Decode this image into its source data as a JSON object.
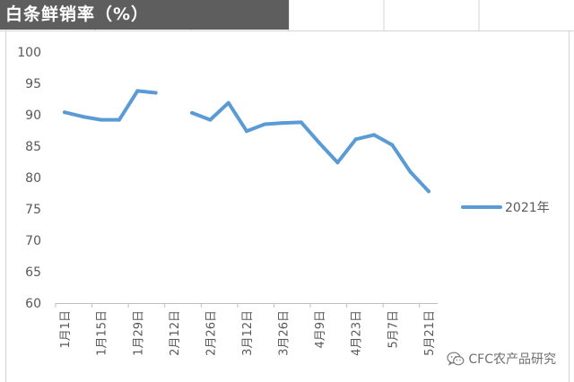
{
  "header": {
    "title": "白条鲜销率（%）"
  },
  "watermark": {
    "text": "CFC农产品研究",
    "icon": "wechat-icon"
  },
  "colors": {
    "series": "#5b9bd5",
    "title_bg": "#5e5e5e",
    "grid": "#d9d9d9",
    "axis": "#bfbfbf",
    "text": "#595959"
  },
  "chart_data": {
    "type": "line",
    "title": "白条鲜销率（%）",
    "xlabel": "",
    "ylabel": "",
    "ylim": [
      60,
      100
    ],
    "yticks": [
      60,
      65,
      70,
      75,
      80,
      85,
      90,
      95,
      100
    ],
    "grid": false,
    "legend": "right",
    "x_tick_labels": [
      "1月1日",
      "1月15日",
      "1月29日",
      "2月12日",
      "2月26日",
      "3月12日",
      "3月26日",
      "4月9日",
      "4月23日",
      "5月7日",
      "5月21日"
    ],
    "series": [
      {
        "name": "2021年",
        "x": [
          "1月1日",
          "1月8日",
          "1月15日",
          "1月22日",
          "1月29日",
          "2月5日",
          "2月12日",
          "2月19日",
          "2月26日",
          "3月5日",
          "3月12日",
          "3月19日",
          "3月26日",
          "4月2日",
          "4月9日",
          "4月16日",
          "4月23日",
          "4月30日",
          "5月7日",
          "5月14日",
          "5月21日"
        ],
        "values": [
          90.4,
          89.7,
          89.2,
          89.2,
          93.8,
          93.5,
          null,
          90.3,
          89.2,
          91.9,
          87.4,
          88.5,
          88.7,
          88.8,
          85.5,
          82.4,
          86.1,
          86.8,
          85.2,
          80.9,
          77.8
        ]
      }
    ]
  }
}
